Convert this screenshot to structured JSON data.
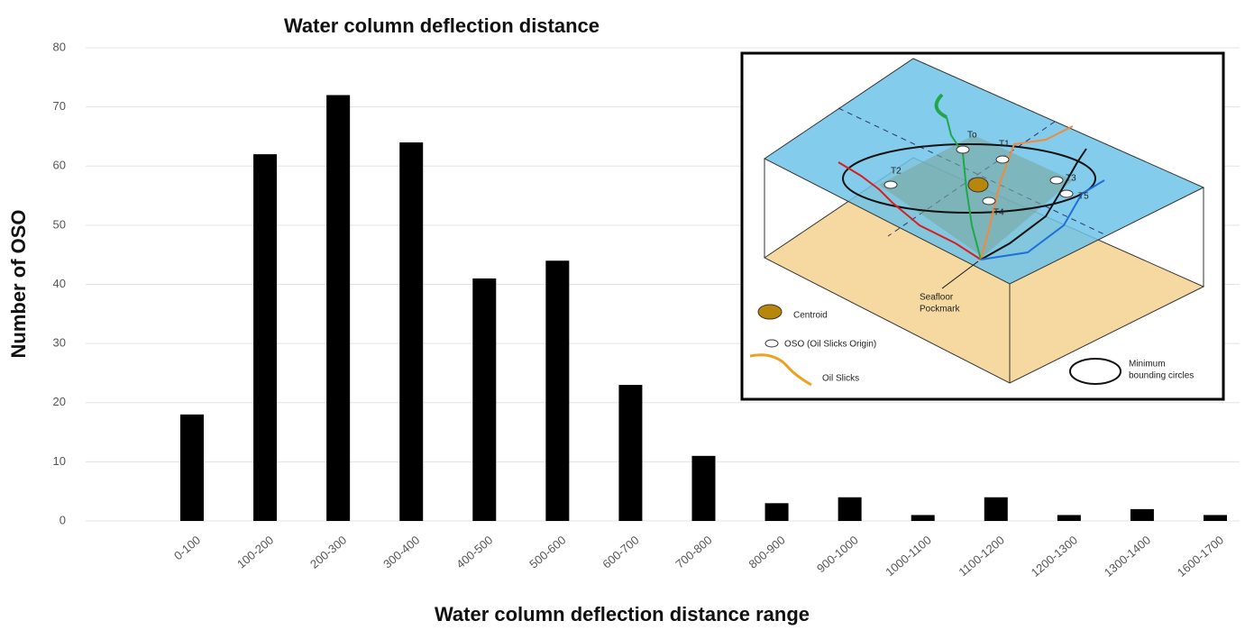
{
  "chart_data": {
    "type": "bar",
    "title": "Water column deflection distance",
    "x_label": "Water column deflection distance range",
    "y_label": "Number of OSO",
    "categories": [
      "0-100",
      "100-200",
      "200-300",
      "300-400",
      "400-500",
      "500-600",
      "600-700",
      "700-800",
      "800-900",
      "900-1000",
      "1000-1100",
      "1100-1200",
      "1200-1300",
      "1300-1400",
      "1600-1700"
    ],
    "values": [
      18,
      62,
      72,
      64,
      41,
      44,
      23,
      11,
      3,
      4,
      1,
      4,
      1,
      2,
      1
    ],
    "color": "#000000",
    "ylim": [
      0,
      80
    ],
    "yticks": [
      0,
      10,
      20,
      30,
      40,
      50,
      60,
      70,
      80
    ],
    "grid": true
  },
  "inset": {
    "time_labels": [
      "To",
      "T1",
      "T2",
      "T3",
      "T4",
      "T5"
    ],
    "pockmark": [
      "Seafloor",
      "Pockmark"
    ],
    "legend": [
      "Centroid",
      "OSO (Oil Slicks Origin)",
      "Oil Slicks",
      [
        "Minimum",
        "bounding circles"
      ]
    ]
  }
}
